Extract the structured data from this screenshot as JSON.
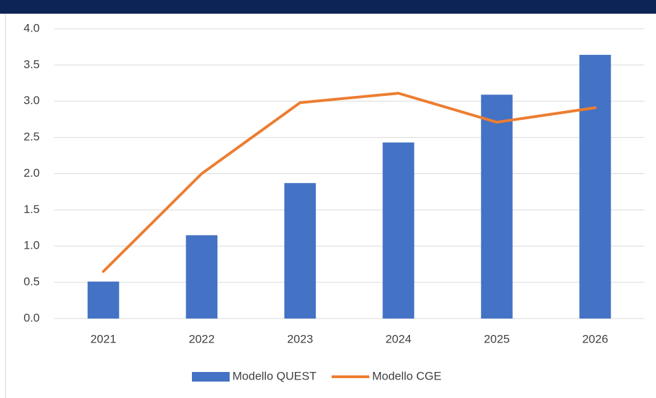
{
  "chart_data": {
    "type": "bar_line",
    "categories": [
      "2021",
      "2022",
      "2023",
      "2024",
      "2025",
      "2026"
    ],
    "series": [
      {
        "name": "Modello QUEST",
        "type": "bar",
        "color": "#4472c4",
        "values": [
          0.51,
          1.15,
          1.87,
          2.43,
          3.09,
          3.64
        ]
      },
      {
        "name": "Modello CGE",
        "type": "line",
        "color": "#ed7d31",
        "values": [
          0.65,
          2.0,
          2.98,
          3.11,
          2.71,
          2.91
        ]
      }
    ],
    "ylim": [
      0,
      4
    ],
    "yticks": [
      {
        "value": 0,
        "label": "0.0"
      },
      0.5,
      {
        "value": 1,
        "label": "1.0"
      },
      1.5,
      {
        "value": 2,
        "label": "2.0"
      },
      2.5,
      {
        "value": 3,
        "label": "3.0"
      },
      3.5,
      {
        "value": 4,
        "label": "4.0"
      }
    ],
    "grid": true,
    "legend": "bottom"
  }
}
